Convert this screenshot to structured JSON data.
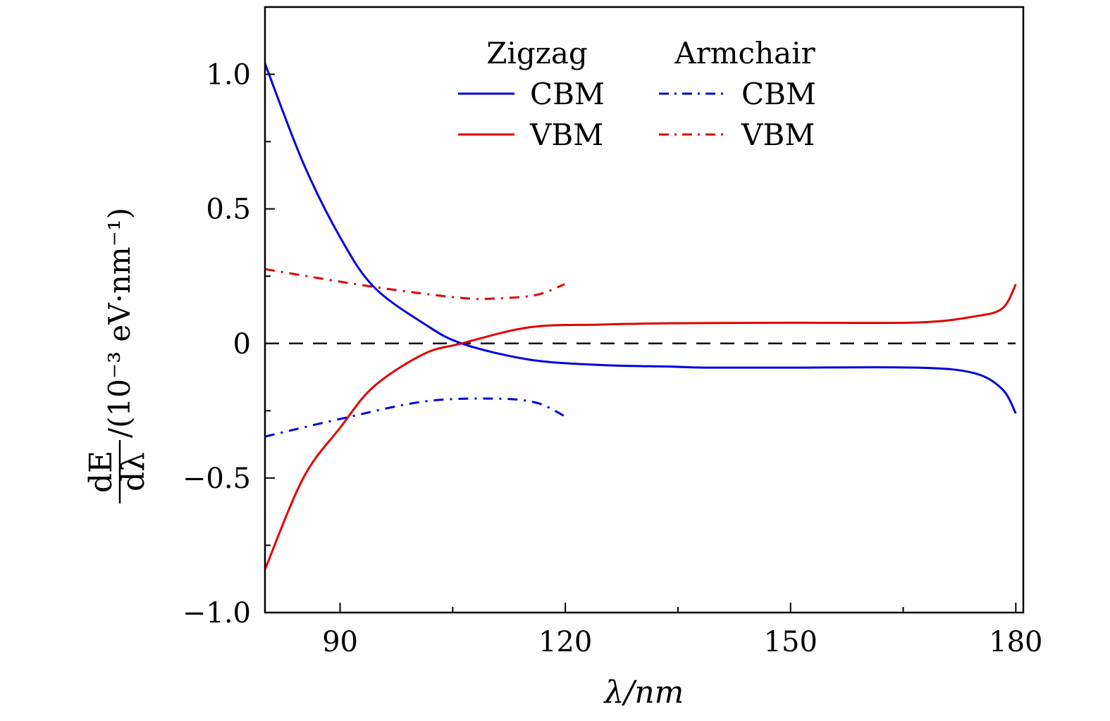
{
  "chart_data": {
    "type": "line",
    "title": "",
    "xlabel": "λ/nm",
    "ylabel": {
      "num": "dE",
      "den": "dλ",
      "units": "/(10⁻³ eV·nm⁻¹)"
    },
    "xlim": [
      80,
      181
    ],
    "ylim": [
      -1.0,
      1.25
    ],
    "xticks": [
      90,
      120,
      150,
      180
    ],
    "xtick_labels": [
      "90",
      "120",
      "150",
      "180"
    ],
    "xminor": [
      105,
      135,
      165
    ],
    "yticks": [
      1.0,
      0.5,
      0,
      -0.5,
      -1.0
    ],
    "ytick_labels": [
      "1.0",
      "0.5",
      "0",
      "−0.5",
      "−1.0"
    ],
    "yminor": [
      0.75,
      0.25,
      -0.25,
      -0.75
    ],
    "grid": false,
    "legend": {
      "placement": "top-center",
      "group_titles": [
        "Zigzag",
        "Armchair"
      ],
      "entries": [
        "CBM",
        "VBM",
        "CBM",
        "VBM"
      ]
    },
    "reference_line": {
      "y": 0,
      "style": "dashed",
      "color": "#000000"
    },
    "series": [
      {
        "name": "Zigzag CBM",
        "group": "Zigzag",
        "label": "CBM",
        "color": "#0000dd",
        "style": "solid",
        "x": [
          80,
          85.1,
          90.1,
          94.5,
          101.1,
          106.2,
          115.2,
          124.6,
          134,
          138.7,
          150,
          166.9,
          174.4,
          178.2,
          180
        ],
        "y": [
          1.04,
          0.67,
          0.39,
          0.21,
          0.075,
          0.0,
          -0.06,
          -0.08,
          -0.086,
          -0.09,
          -0.09,
          -0.09,
          -0.11,
          -0.17,
          -0.26
        ]
      },
      {
        "name": "Zigzag VBM",
        "group": "Zigzag",
        "label": "VBM",
        "color": "#e00000",
        "style": "solid",
        "x": [
          80,
          85.1,
          90.1,
          94.5,
          101.1,
          106.2,
          115.2,
          124.6,
          134,
          150,
          166.9,
          174.4,
          178.2,
          180
        ],
        "y": [
          -0.84,
          -0.5,
          -0.31,
          -0.16,
          -0.04,
          0.0,
          0.06,
          0.07,
          0.075,
          0.077,
          0.078,
          0.1,
          0.13,
          0.22
        ]
      },
      {
        "name": "Armchair CBM",
        "group": "Armchair",
        "label": "CBM",
        "color": "#0000dd",
        "style": "dashdot",
        "x": [
          80,
          90.1,
          101.1,
          110.5,
          116.1,
          119.9
        ],
        "y": [
          -0.346,
          -0.28,
          -0.216,
          -0.205,
          -0.22,
          -0.27
        ]
      },
      {
        "name": "Armchair VBM",
        "group": "Armchair",
        "label": "VBM",
        "color": "#e00000",
        "style": "dashdot",
        "x": [
          80,
          94.5,
          105.8,
          110.5,
          116.1,
          119.9
        ],
        "y": [
          0.276,
          0.21,
          0.17,
          0.167,
          0.18,
          0.22
        ]
      }
    ]
  }
}
